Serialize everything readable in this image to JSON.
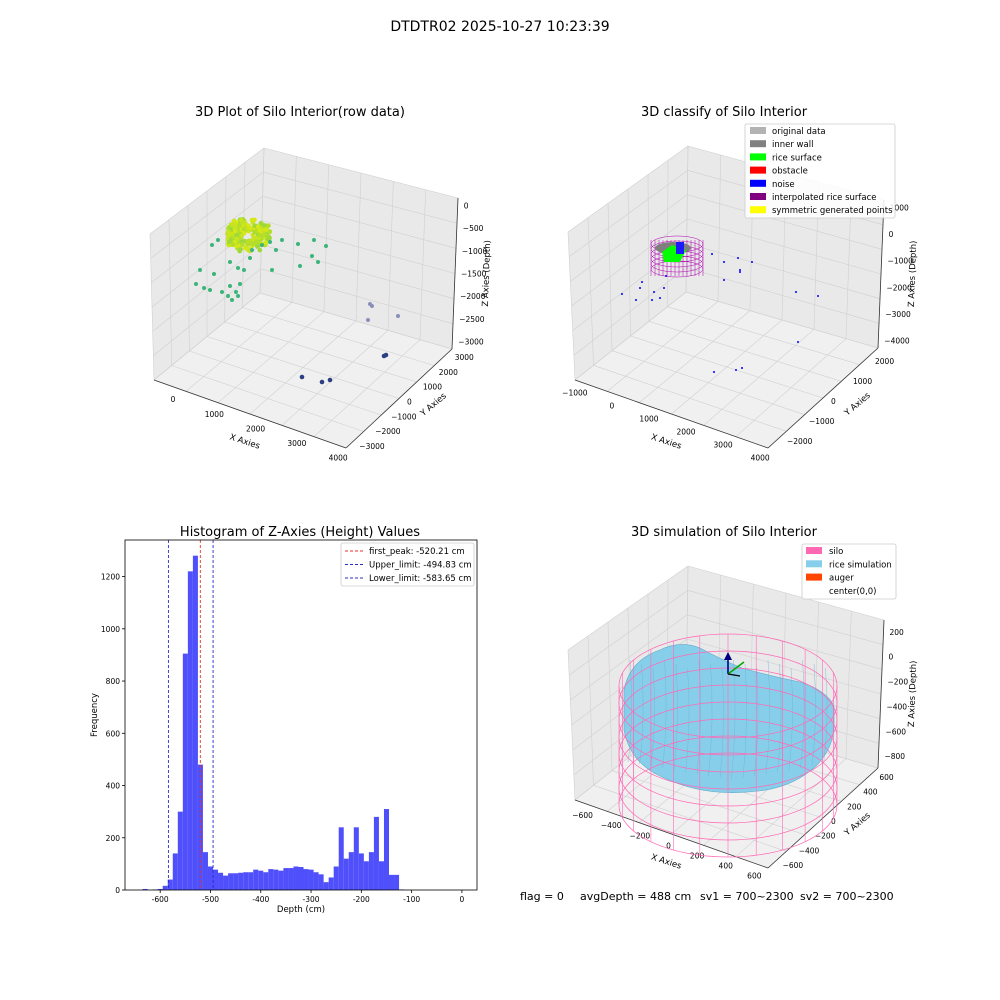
{
  "figure": {
    "title": "DTDTR02 2025-10-27 10:23:39",
    "footer": {
      "flag": "flag = 0",
      "avg_depth": "avgDepth = 488 cm",
      "sv1": "sv1 = 700~2300",
      "sv2": "sv2 = 700~2300"
    },
    "colors": {
      "histogram_bar": "#4f4ffb",
      "first_peak_line": "#e8322b",
      "limit_lines": "#2b2bc8",
      "silo_wireframe": "#ff69b4",
      "rice_simulation": "#87ceeb",
      "auger": "#ff4500"
    }
  },
  "chart_data": [
    {
      "type": "scatter3d",
      "title": "3D Plot of Silo Interior(row data)",
      "xlabel": "X Axies",
      "ylabel": "Y Axies",
      "zlabel": "Z Axies (Depth)",
      "x_ticks": [
        "0",
        "1000",
        "2000",
        "3000",
        "4000"
      ],
      "y_ticks": [
        "−3000",
        "−2000",
        "−1000",
        "0",
        "1000",
        "2000",
        "3000"
      ],
      "z_ticks": [
        "0",
        "−500",
        "−1000",
        "−1500",
        "−2000",
        "−2500",
        "−3000"
      ],
      "grid": true
    },
    {
      "type": "scatter3d",
      "title": "3D classify of Silo Interior",
      "xlabel": "X Axies",
      "ylabel": "Y Axies",
      "zlabel": "Z Axies (Depth)",
      "x_ticks": [
        "−1000",
        "0",
        "1000",
        "2000",
        "3000",
        "4000"
      ],
      "y_ticks": [
        "−2000",
        "−1000",
        "0",
        "1000",
        "2000"
      ],
      "z_ticks": [
        "1000",
        "0",
        "−1000",
        "−2000",
        "−3000",
        "−4000"
      ],
      "legend_position": "top-right",
      "legend": [
        {
          "label": "original data",
          "color": "#b3b3b3"
        },
        {
          "label": "inner wall",
          "color": "#808080"
        },
        {
          "label": "rice surface",
          "color": "#00ff00"
        },
        {
          "label": "obstacle",
          "color": "#ff0000"
        },
        {
          "label": "noise",
          "color": "#0000ff"
        },
        {
          "label": "interpolated rice surface",
          "color": "#800080"
        },
        {
          "label": "symmetric generated points",
          "color": "#ffff00"
        }
      ],
      "grid": true
    },
    {
      "type": "bar",
      "title": "Histogram of Z-Axies (Height) Values",
      "xlabel": "Depth (cm)",
      "ylabel": "Frequency",
      "xlim": [
        -670,
        30
      ],
      "ylim": [
        0,
        1340
      ],
      "x_ticks": [
        -600,
        -500,
        -400,
        -300,
        -200,
        -100,
        0
      ],
      "y_ticks": [
        0,
        200,
        400,
        600,
        800,
        1000,
        1200
      ],
      "bin_width": 10,
      "bin_starts": [
        -635,
        -625,
        -615,
        -605,
        -595,
        -585,
        -575,
        -565,
        -555,
        -545,
        -535,
        -525,
        -515,
        -505,
        -495,
        -485,
        -475,
        -465,
        -455,
        -445,
        -435,
        -425,
        -415,
        -405,
        -395,
        -385,
        -375,
        -365,
        -355,
        -345,
        -335,
        -325,
        -315,
        -305,
        -295,
        -285,
        -275,
        -265,
        -255,
        -245,
        -235,
        -225,
        -215,
        -205,
        -195,
        -185,
        -175,
        -165,
        -155,
        -145,
        -135,
        -125,
        -115,
        -105,
        -95,
        -85,
        -75,
        -65,
        -55,
        -45,
        -35,
        -25,
        -15,
        -5
      ],
      "values": [
        4,
        0,
        2,
        4,
        16,
        40,
        140,
        300,
        905,
        1220,
        1280,
        480,
        145,
        90,
        78,
        66,
        55,
        64,
        64,
        66,
        68,
        68,
        78,
        74,
        68,
        80,
        78,
        74,
        84,
        84,
        90,
        88,
        80,
        78,
        68,
        60,
        30,
        48,
        90,
        240,
        120,
        145,
        240,
        140,
        110,
        145,
        280,
        110,
        310,
        58,
        58,
        2,
        0,
        0,
        0,
        0,
        0,
        0,
        0,
        0,
        0,
        0,
        0,
        0
      ],
      "lines": [
        {
          "label": "first_peak: -520.21 cm",
          "x": -520.21,
          "color": "#e8322b"
        },
        {
          "label": "Upper_limit: -494.83 cm",
          "x": -494.83,
          "color": "#2b2bc8"
        },
        {
          "label": "Lower_limit: -583.65 cm",
          "x": -583.65,
          "color": "#2b2bc8"
        }
      ],
      "legend_position": "top-right",
      "grid": false
    },
    {
      "type": "surface3d",
      "title": "3D simulation of Silo Interior",
      "xlabel": "X Axies",
      "ylabel": "Y Axies",
      "zlabel": "Z Axies (Depth)",
      "x_ticks": [
        "−600",
        "−400",
        "−200",
        "0",
        "200",
        "400",
        "600"
      ],
      "y_ticks": [
        "−600",
        "−400",
        "−200",
        "0",
        "200",
        "400",
        "600"
      ],
      "z_ticks": [
        "200",
        "0",
        "−200",
        "−400",
        "−600",
        "−800"
      ],
      "legend_position": "top-right",
      "legend": [
        {
          "label": "silo",
          "color": "#ff69b4"
        },
        {
          "label": "rice simulation",
          "color": "#87ceeb"
        },
        {
          "label": "auger",
          "color": "#ff4500"
        },
        {
          "label": "center(0,0)",
          "color": ""
        }
      ],
      "grid": true
    }
  ]
}
